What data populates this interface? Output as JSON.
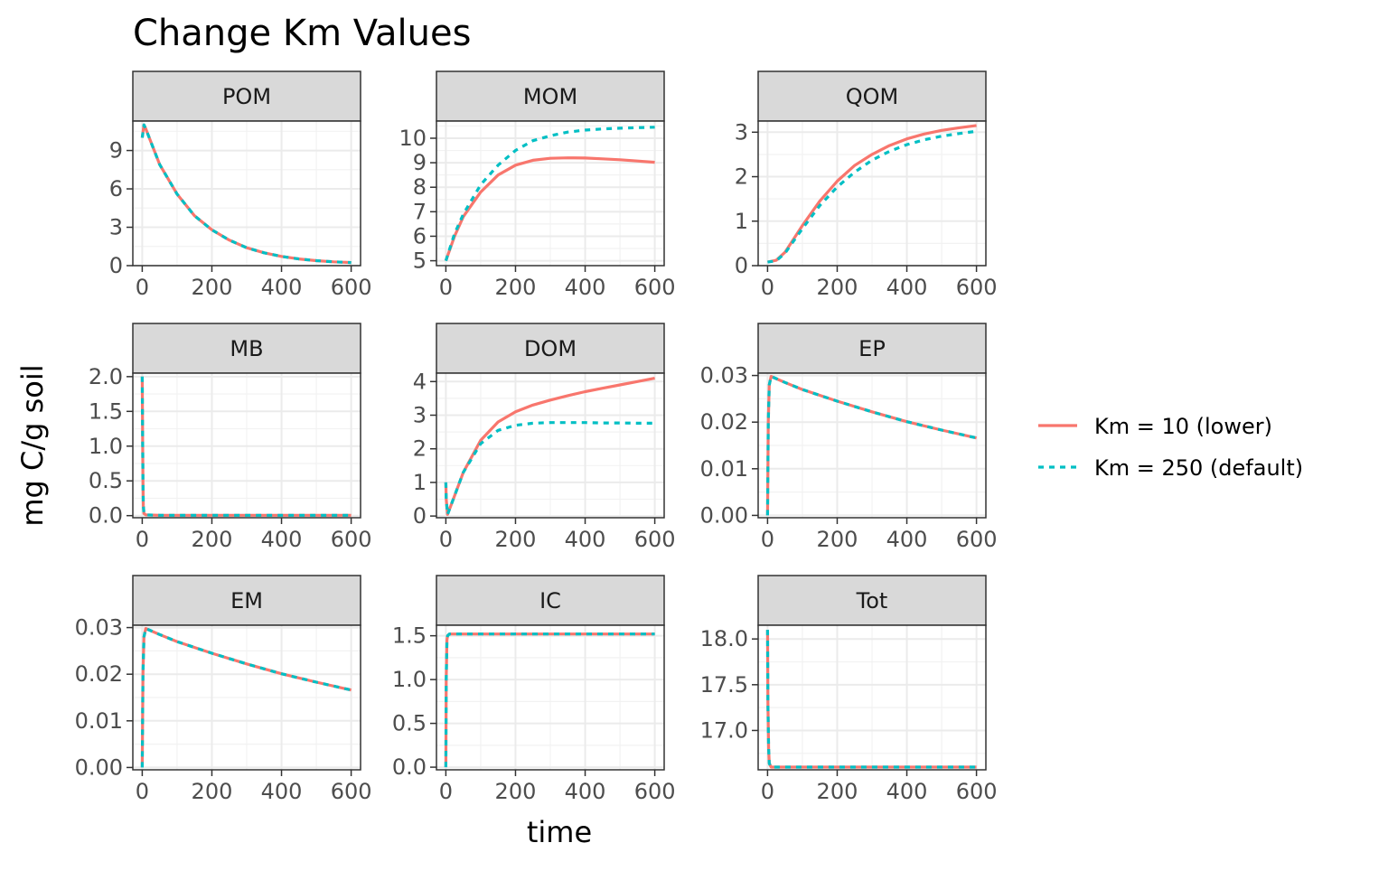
{
  "title": "Change Km Values",
  "xlabel": "time",
  "ylabel": "mg C/g soil",
  "colors": {
    "lower": "#F8766D",
    "default": "#00BFC4"
  },
  "legend": {
    "placement": "right",
    "items": [
      {
        "label": "Km = 10 (lower)",
        "color": "#F8766D",
        "linetype": "solid"
      },
      {
        "label": "Km = 250 (default)",
        "color": "#00BFC4",
        "linetype": "dotted"
      }
    ]
  },
  "chart_data": {
    "type": "line",
    "facet": "wrap",
    "x_ticks": [
      0,
      200,
      400,
      600
    ],
    "grid": true,
    "panels": [
      {
        "name": "POM",
        "ylim": [
          0,
          11.3
        ],
        "y_ticks": [
          0,
          3,
          6,
          9
        ],
        "series": [
          {
            "name": "Km = 10 (lower)",
            "x": [
              0,
              5,
              10,
              50,
              100,
              150,
              200,
              250,
              300,
              350,
              400,
              450,
              500,
              550,
              600
            ],
            "y": [
              10,
              11,
              10.7,
              7.9,
              5.6,
              3.9,
              2.8,
              2.0,
              1.4,
              1.0,
              0.72,
              0.52,
              0.39,
              0.3,
              0.24
            ]
          },
          {
            "name": "Km = 250 (default)",
            "x": [
              0,
              5,
              10,
              50,
              100,
              150,
              200,
              250,
              300,
              350,
              400,
              450,
              500,
              550,
              600
            ],
            "y": [
              10,
              11,
              10.7,
              7.9,
              5.6,
              3.9,
              2.8,
              2.0,
              1.4,
              1.0,
              0.72,
              0.52,
              0.39,
              0.3,
              0.24
            ]
          }
        ]
      },
      {
        "name": "MOM",
        "ylim": [
          4.8,
          10.7
        ],
        "y_ticks": [
          5,
          6,
          7,
          8,
          9,
          10
        ],
        "series": [
          {
            "name": "Km = 10 (lower)",
            "x": [
              0,
              25,
              50,
              100,
              150,
              200,
              250,
              300,
              350,
              400,
              450,
              500,
              550,
              600
            ],
            "y": [
              5.0,
              6.0,
              6.8,
              7.8,
              8.5,
              8.9,
              9.1,
              9.18,
              9.2,
              9.19,
              9.16,
              9.12,
              9.07,
              9.02
            ]
          },
          {
            "name": "Km = 250 (default)",
            "x": [
              0,
              25,
              50,
              100,
              150,
              200,
              250,
              300,
              350,
              400,
              450,
              500,
              550,
              600
            ],
            "y": [
              5.0,
              6.1,
              6.9,
              8.1,
              8.9,
              9.5,
              9.9,
              10.1,
              10.25,
              10.33,
              10.38,
              10.41,
              10.43,
              10.45
            ]
          }
        ]
      },
      {
        "name": "QOM",
        "ylim": [
          0,
          3.25
        ],
        "y_ticks": [
          0,
          1,
          2,
          3
        ],
        "series": [
          {
            "name": "Km = 10 (lower)",
            "x": [
              0,
              25,
              50,
              100,
              150,
              200,
              250,
              300,
              350,
              400,
              450,
              500,
              550,
              600
            ],
            "y": [
              0.08,
              0.12,
              0.3,
              0.9,
              1.45,
              1.9,
              2.25,
              2.5,
              2.7,
              2.85,
              2.96,
              3.04,
              3.1,
              3.15
            ]
          },
          {
            "name": "Km = 250 (default)",
            "x": [
              0,
              25,
              50,
              100,
              150,
              200,
              250,
              300,
              350,
              400,
              450,
              500,
              550,
              600
            ],
            "y": [
              0.08,
              0.11,
              0.28,
              0.83,
              1.35,
              1.77,
              2.1,
              2.37,
              2.57,
              2.72,
              2.83,
              2.91,
              2.97,
              3.02
            ]
          }
        ]
      },
      {
        "name": "MB",
        "ylim": [
          -0.03,
          2.05
        ],
        "y_ticks": [
          0.0,
          0.5,
          1.0,
          1.5,
          2.0
        ],
        "y_tick_labels": [
          "0.0",
          "0.5",
          "1.0",
          "1.5",
          "2.0"
        ],
        "series": [
          {
            "name": "Km = 10 (lower)",
            "x": [
              0,
              1,
              2,
              3,
              5,
              10,
              50,
              100,
              200,
              300,
              400,
              500,
              600
            ],
            "y": [
              2.0,
              1.2,
              0.5,
              0.15,
              0.03,
              0.01,
              0.005,
              0.005,
              0.005,
              0.005,
              0.005,
              0.005,
              0.005
            ]
          },
          {
            "name": "Km = 250 (default)",
            "x": [
              0,
              1,
              2,
              3,
              5,
              10,
              50,
              100,
              200,
              300,
              400,
              500,
              600
            ],
            "y": [
              2.0,
              1.2,
              0.5,
              0.15,
              0.03,
              0.01,
              0.005,
              0.005,
              0.005,
              0.005,
              0.005,
              0.005,
              0.005
            ]
          }
        ]
      },
      {
        "name": "DOM",
        "ylim": [
          -0.05,
          4.25
        ],
        "y_ticks": [
          0,
          1,
          2,
          3,
          4
        ],
        "series": [
          {
            "name": "Km = 10 (lower)",
            "x": [
              0,
              1,
              5,
              25,
              50,
              100,
              150,
              200,
              250,
              300,
              350,
              400,
              450,
              500,
              550,
              600
            ],
            "y": [
              1.0,
              0.5,
              0.05,
              0.6,
              1.3,
              2.25,
              2.8,
              3.1,
              3.3,
              3.45,
              3.58,
              3.7,
              3.8,
              3.9,
              4.0,
              4.1
            ]
          },
          {
            "name": "Km = 250 (default)",
            "x": [
              0,
              1,
              5,
              25,
              50,
              100,
              150,
              200,
              250,
              300,
              350,
              400,
              450,
              500,
              550,
              600
            ],
            "y": [
              1.0,
              0.5,
              0.05,
              0.6,
              1.3,
              2.15,
              2.55,
              2.7,
              2.76,
              2.78,
              2.78,
              2.78,
              2.77,
              2.77,
              2.76,
              2.76
            ]
          }
        ]
      },
      {
        "name": "EP",
        "ylim": [
          -0.0005,
          0.0305
        ],
        "y_ticks": [
          0,
          0.01,
          0.02,
          0.03
        ],
        "y_tick_labels": [
          "0.00",
          "0.01",
          "0.02",
          "0.03"
        ],
        "series": [
          {
            "name": "Km = 10 (lower)",
            "x": [
              0,
              2,
              5,
              10,
              50,
              100,
              200,
              300,
              400,
              500,
              600
            ],
            "y": [
              0,
              0.02,
              0.028,
              0.0298,
              0.0285,
              0.027,
              0.0245,
              0.0222,
              0.0201,
              0.0183,
              0.0166
            ]
          },
          {
            "name": "Km = 250 (default)",
            "x": [
              0,
              2,
              5,
              10,
              50,
              100,
              200,
              300,
              400,
              500,
              600
            ],
            "y": [
              0,
              0.02,
              0.028,
              0.0298,
              0.0285,
              0.027,
              0.0245,
              0.0222,
              0.0201,
              0.0183,
              0.0166
            ]
          }
        ]
      },
      {
        "name": "EM",
        "ylim": [
          -0.0005,
          0.0305
        ],
        "y_ticks": [
          0,
          0.01,
          0.02,
          0.03
        ],
        "y_tick_labels": [
          "0.00",
          "0.01",
          "0.02",
          "0.03"
        ],
        "series": [
          {
            "name": "Km = 10 (lower)",
            "x": [
              0,
              2,
              5,
              10,
              50,
              100,
              200,
              300,
              400,
              500,
              600
            ],
            "y": [
              0,
              0.02,
              0.028,
              0.0298,
              0.0285,
              0.027,
              0.0245,
              0.0222,
              0.0201,
              0.0183,
              0.0166
            ]
          },
          {
            "name": "Km = 250 (default)",
            "x": [
              0,
              2,
              5,
              10,
              50,
              100,
              200,
              300,
              400,
              500,
              600
            ],
            "y": [
              0,
              0.02,
              0.028,
              0.0298,
              0.0285,
              0.027,
              0.0245,
              0.0222,
              0.0201,
              0.0183,
              0.0166
            ]
          }
        ]
      },
      {
        "name": "IC",
        "ylim": [
          -0.03,
          1.62
        ],
        "y_ticks": [
          0.0,
          0.5,
          1.0,
          1.5
        ],
        "y_tick_labels": [
          "0.0",
          "0.5",
          "1.0",
          "1.5"
        ],
        "series": [
          {
            "name": "Km = 10 (lower)",
            "x": [
              0,
              1,
              3,
              5,
              10,
              50,
              100,
              200,
              300,
              400,
              500,
              600
            ],
            "y": [
              0,
              1.0,
              1.45,
              1.5,
              1.52,
              1.52,
              1.52,
              1.52,
              1.52,
              1.52,
              1.52,
              1.52
            ]
          },
          {
            "name": "Km = 250 (default)",
            "x": [
              0,
              1,
              3,
              5,
              10,
              50,
              100,
              200,
              300,
              400,
              500,
              600
            ],
            "y": [
              0,
              1.0,
              1.45,
              1.5,
              1.52,
              1.52,
              1.52,
              1.52,
              1.52,
              1.52,
              1.52,
              1.52
            ]
          }
        ]
      },
      {
        "name": "Tot",
        "ylim": [
          16.57,
          18.15
        ],
        "y_ticks": [
          17.0,
          17.5,
          18.0
        ],
        "y_tick_labels": [
          "17.0",
          "17.5",
          "18.0"
        ],
        "series": [
          {
            "name": "Km = 10 (lower)",
            "x": [
              0,
              1,
              3,
              5,
              10,
              50,
              100,
              200,
              300,
              400,
              500,
              600
            ],
            "y": [
              18.1,
              17.3,
              16.8,
              16.64,
              16.6,
              16.6,
              16.6,
              16.6,
              16.6,
              16.6,
              16.6,
              16.6
            ]
          },
          {
            "name": "Km = 250 (default)",
            "x": [
              0,
              1,
              3,
              5,
              10,
              50,
              100,
              200,
              300,
              400,
              500,
              600
            ],
            "y": [
              18.1,
              17.3,
              16.8,
              16.64,
              16.6,
              16.6,
              16.6,
              16.6,
              16.6,
              16.6,
              16.6,
              16.6
            ]
          }
        ]
      }
    ]
  }
}
